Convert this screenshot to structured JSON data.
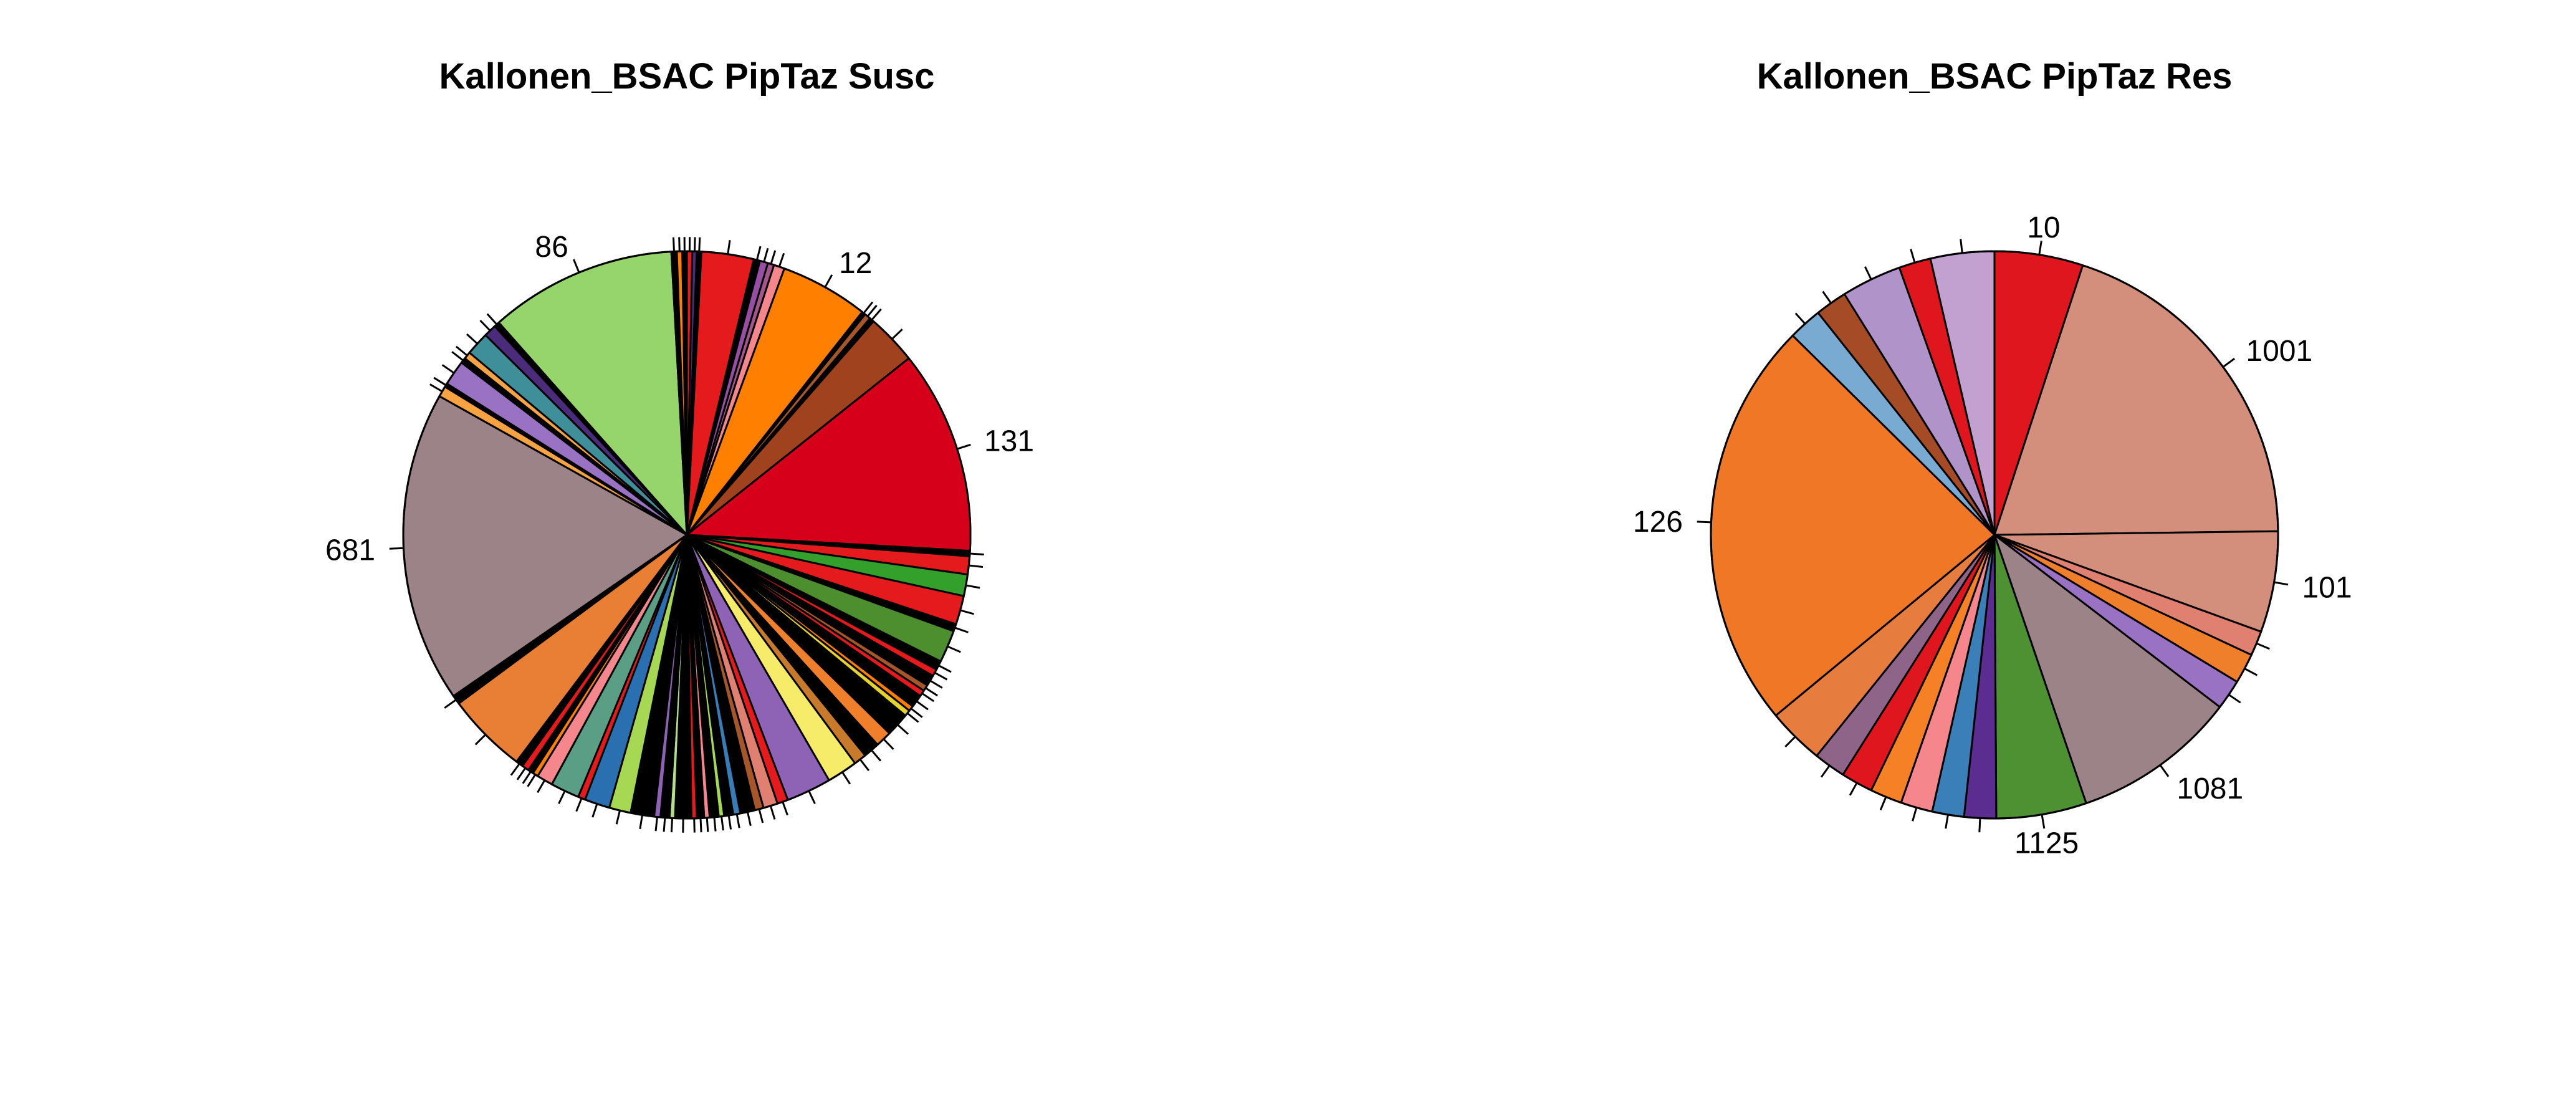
{
  "chart_data": [
    {
      "type": "pie",
      "title": "Kallonen_BSAC PipTaz Susc",
      "clockwise": true,
      "start_angle_deg": 90,
      "slices": [
        {
          "label": "",
          "value": 0.3,
          "color": "#e41a1c"
        },
        {
          "label": "",
          "value": 0.25,
          "color": "#4a2c7a"
        },
        {
          "label": "",
          "value": 0.25,
          "color": "#000000"
        },
        {
          "label": "",
          "value": 2.9,
          "color": "#e41a1c"
        },
        {
          "label": "",
          "value": 0.35,
          "color": "#000000"
        },
        {
          "label": "",
          "value": 0.45,
          "color": "#984ea3"
        },
        {
          "label": "",
          "value": 0.35,
          "color": "#a6558f"
        },
        {
          "label": "",
          "value": 0.6,
          "color": "#f4868c"
        },
        {
          "label": "12",
          "value": 4.9,
          "color": "#ff7f00"
        },
        {
          "label": "",
          "value": 0.2,
          "color": "#000000"
        },
        {
          "label": "",
          "value": 0.35,
          "color": "#a65628"
        },
        {
          "label": "",
          "value": 0.25,
          "color": "#000000"
        },
        {
          "label": "",
          "value": 2.8,
          "color": "#a0421e"
        },
        {
          "label": "131",
          "value": 11.3,
          "color": "#d7001b"
        },
        {
          "label": "",
          "value": 0.3,
          "color": "#000000"
        },
        {
          "label": "",
          "value": 1.0,
          "color": "#e41a1c"
        },
        {
          "label": "",
          "value": 1.2,
          "color": "#33a02c"
        },
        {
          "label": "",
          "value": 1.6,
          "color": "#e41a1c"
        },
        {
          "label": "",
          "value": 0.4,
          "color": "#000000"
        },
        {
          "label": "",
          "value": 1.8,
          "color": "#4d8f2f"
        },
        {
          "label": "",
          "value": 0.5,
          "color": "#000000"
        },
        {
          "label": "",
          "value": 0.4,
          "color": "#e41a1c"
        },
        {
          "label": "",
          "value": 0.6,
          "color": "#000000"
        },
        {
          "label": "",
          "value": 0.35,
          "color": "#a65628"
        },
        {
          "label": "",
          "value": 0.35,
          "color": "#e41a1c"
        },
        {
          "label": "",
          "value": 0.7,
          "color": "#000000"
        },
        {
          "label": "",
          "value": 0.3,
          "color": "#ff7f00"
        },
        {
          "label": "",
          "value": 0.35,
          "color": "#e6d22a"
        },
        {
          "label": "",
          "value": 1.3,
          "color": "#000000"
        },
        {
          "label": "",
          "value": 0.9,
          "color": "#f07f2b"
        },
        {
          "label": "",
          "value": 0.9,
          "color": "#000000"
        },
        {
          "label": "",
          "value": 0.7,
          "color": "#c67a2a"
        },
        {
          "label": "",
          "value": 1.7,
          "color": "#f7ec6a"
        },
        {
          "label": "",
          "value": 2.5,
          "color": "#8e62b4"
        },
        {
          "label": "",
          "value": 0.6,
          "color": "#e41a1c"
        },
        {
          "label": "",
          "value": 0.8,
          "color": "#e08070"
        },
        {
          "label": "",
          "value": 0.5,
          "color": "#a65628"
        },
        {
          "label": "",
          "value": 0.8,
          "color": "#000000"
        },
        {
          "label": "",
          "value": 0.4,
          "color": "#377eb8"
        },
        {
          "label": "",
          "value": 0.5,
          "color": "#000000"
        },
        {
          "label": "",
          "value": 0.3,
          "color": "#a6d854"
        },
        {
          "label": "",
          "value": 0.5,
          "color": "#000000"
        },
        {
          "label": "",
          "value": 0.3,
          "color": "#f4868c"
        },
        {
          "label": "",
          "value": 0.4,
          "color": "#000000"
        },
        {
          "label": "",
          "value": 0.3,
          "color": "#e41a1c"
        },
        {
          "label": "",
          "value": 0.9,
          "color": "#000000"
        },
        {
          "label": "",
          "value": 0.3,
          "color": "#b2df8a"
        },
        {
          "label": "",
          "value": 0.5,
          "color": "#000000"
        },
        {
          "label": "",
          "value": 0.35,
          "color": "#8e62b4"
        },
        {
          "label": "",
          "value": 1.3,
          "color": "#000000"
        },
        {
          "label": "",
          "value": 1.2,
          "color": "#a6d854"
        },
        {
          "label": "",
          "value": 1.4,
          "color": "#2a70b0"
        },
        {
          "label": "",
          "value": 0.4,
          "color": "#e41a1c"
        },
        {
          "label": "",
          "value": 1.6,
          "color": "#5b9e86"
        },
        {
          "label": "",
          "value": 0.9,
          "color": "#f4868c"
        },
        {
          "label": "",
          "value": 0.3,
          "color": "#ff7f00"
        },
        {
          "label": "",
          "value": 0.3,
          "color": "#000000"
        },
        {
          "label": "",
          "value": 0.4,
          "color": "#e41a1c"
        },
        {
          "label": "",
          "value": 0.4,
          "color": "#000000"
        },
        {
          "label": "",
          "value": 4.5,
          "color": "#e97e35"
        },
        {
          "label": "",
          "value": 0.5,
          "color": "#000000"
        },
        {
          "label": "681",
          "value": 17.3,
          "color": "#9c8387"
        },
        {
          "label": "",
          "value": 0.6,
          "color": "#f7a341"
        },
        {
          "label": "",
          "value": 0.2,
          "color": "#000000"
        },
        {
          "label": "",
          "value": 1.4,
          "color": "#9a72c4"
        },
        {
          "label": "",
          "value": 0.3,
          "color": "#000000"
        },
        {
          "label": "",
          "value": 0.4,
          "color": "#f7a341"
        },
        {
          "label": "",
          "value": 1.3,
          "color": "#3f8f9a"
        },
        {
          "label": "",
          "value": 0.7,
          "color": "#4a2c7a"
        },
        {
          "label": "",
          "value": 0.3,
          "color": "#000000"
        },
        {
          "label": "86",
          "value": 10.4,
          "color": "#96d56b"
        },
        {
          "label": "",
          "value": 0.3,
          "color": "#000000"
        },
        {
          "label": "",
          "value": 0.3,
          "color": "#ff7f00"
        },
        {
          "label": "",
          "value": 0.25,
          "color": "#000000"
        }
      ]
    },
    {
      "type": "pie",
      "title": "Kallonen_BSAC PipTaz Res",
      "clockwise": true,
      "start_angle_deg": 90,
      "slices": [
        {
          "label": "10",
          "value": 5.0,
          "color": "#e0161f"
        },
        {
          "label": "1001",
          "value": 19.6,
          "color": "#d38f7c"
        },
        {
          "label": "101",
          "value": 5.7,
          "color": "#d38f7c"
        },
        {
          "label": "",
          "value": 1.4,
          "color": "#e08070"
        },
        {
          "label": "",
          "value": 1.7,
          "color": "#f07f2b"
        },
        {
          "label": "",
          "value": 1.7,
          "color": "#9a72c4"
        },
        {
          "label": "1081",
          "value": 9.3,
          "color": "#9c8387"
        },
        {
          "label": "1125",
          "value": 5.1,
          "color": "#4e9133"
        },
        {
          "label": "",
          "value": 1.8,
          "color": "#5c2d91"
        },
        {
          "label": "",
          "value": 1.8,
          "color": "#3a7fb8"
        },
        {
          "label": "",
          "value": 1.8,
          "color": "#f4868c"
        },
        {
          "label": "",
          "value": 1.8,
          "color": "#f58025"
        },
        {
          "label": "",
          "value": 1.8,
          "color": "#e0161f"
        },
        {
          "label": "",
          "value": 1.8,
          "color": "#8e6488"
        },
        {
          "label": "",
          "value": 3.2,
          "color": "#e67c3e"
        },
        {
          "label": "126",
          "value": 23.2,
          "color": "#f07726"
        },
        {
          "label": "",
          "value": 1.9,
          "color": "#79abd2"
        },
        {
          "label": "",
          "value": 1.8,
          "color": "#a54b25"
        },
        {
          "label": "",
          "value": 3.4,
          "color": "#b093c8"
        },
        {
          "label": "",
          "value": 1.8,
          "color": "#e0161f"
        },
        {
          "label": "",
          "value": 3.6,
          "color": "#c2a0cf"
        }
      ]
    }
  ]
}
